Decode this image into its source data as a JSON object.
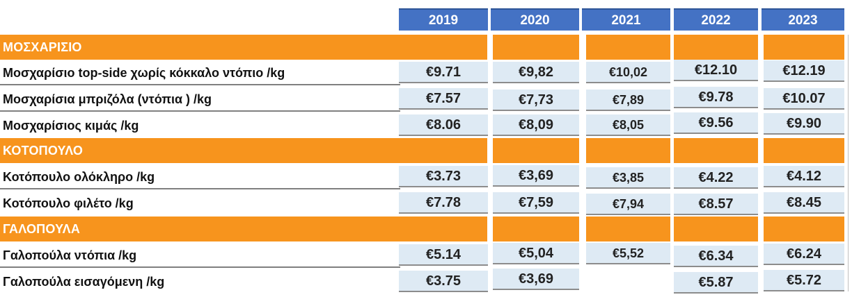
{
  "years": [
    "2019",
    "2020",
    "2021",
    "2022",
    "2023"
  ],
  "categories": [
    {
      "label": "ΜΟΣΧΑΡΙΣΙΟ",
      "rows": [
        {
          "label": "Μοσχαρίσιο top-side χωρίς κόκκαλο ντόπιο /kg",
          "values": [
            "€9.71",
            "€9,82",
            "€10,02",
            "€12.10",
            "€12.19"
          ]
        },
        {
          "label": "Μοσχαρίσια μπριζόλα (ντόπια ) /kg",
          "values": [
            "€7.57",
            "€7,73",
            "€7,89",
            "€9.78",
            "€10.07"
          ]
        },
        {
          "label": "Μοσχαρίσιος κιμάς /kg",
          "values": [
            "€8.06",
            "€8,09",
            "€8,05",
            "€9.56",
            "€9.90"
          ]
        }
      ]
    },
    {
      "label": "ΚΟΤΟΠΟΥΛΟ",
      "rows": [
        {
          "label": "Κοτόπουλο ολόκληρο /kg",
          "values": [
            "€3.73",
            "€3,69",
            "€3,85",
            "€4.22",
            "€4.12"
          ]
        },
        {
          "label": "Κοτόπουλο φιλέτο /kg",
          "values": [
            "€7.78",
            "€7,59",
            "€7,94",
            "€8.57",
            "€8.45"
          ]
        }
      ]
    },
    {
      "label": "ΓΑΛΟΠΟΥΛΑ",
      "rows": [
        {
          "label": "Γαλοπούλα ντόπια /kg",
          "values": [
            "€5.14",
            "€5,04",
            "€5,52",
            "€6.34",
            "€6.24"
          ]
        },
        {
          "label": "Γαλοπούλα εισαγόμενη /kg",
          "values": [
            "€3.75",
            "€3,69",
            "",
            "€5.87",
            "€5.72"
          ]
        }
      ]
    }
  ],
  "colors": {
    "header_blue": "#4472c4",
    "category_orange": "#f7941d",
    "value_cell": "#deeaf4"
  }
}
